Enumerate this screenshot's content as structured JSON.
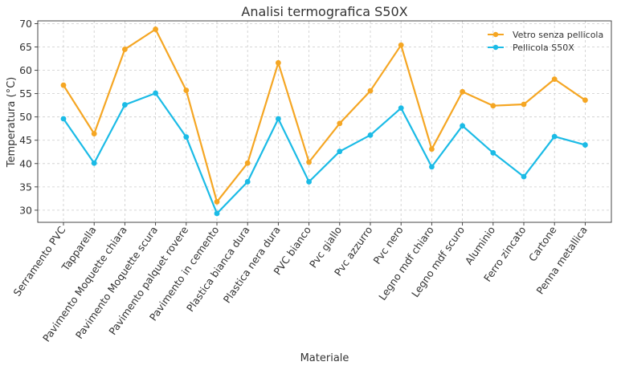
{
  "chart_data": {
    "type": "line",
    "title": "Analisi termografica S50X",
    "xlabel": "Materiale",
    "ylabel": "Temperatura (°C)",
    "ylim": [
      27.4,
      70.6
    ],
    "yticks": [
      30,
      35,
      40,
      45,
      50,
      55,
      60,
      65,
      70
    ],
    "grid": true,
    "legend_position": "top-right",
    "categories": [
      "Serramento PVC",
      "Tapparella",
      "Pavimento Moquette chiara",
      "Pavimento Moquette scura",
      "Pavimento palquet rovere",
      "Pavimento in cemento",
      "Plastica bianca dura",
      "Plastica nera dura",
      "PVC bianco",
      "Pvc giallo",
      "Pvc azzurro",
      "Pvc nero",
      "Legno mdf chiaro",
      "Legno mdf scuro",
      "Aluminio",
      "Ferro zincato",
      "Cartone",
      "Penna metallica"
    ],
    "series": [
      {
        "name": "Vetro senza pellicola",
        "color": "#f5a623",
        "values": [
          56.8,
          46.4,
          64.5,
          68.8,
          55.7,
          31.8,
          40.1,
          61.6,
          40.3,
          48.6,
          55.6,
          65.4,
          43.1,
          55.4,
          52.4,
          52.7,
          58.1,
          53.6
        ]
      },
      {
        "name": "Pellicola S50X",
        "color": "#1bbbe6",
        "values": [
          49.6,
          40.1,
          52.6,
          55.1,
          45.7,
          29.3,
          36.1,
          49.6,
          36.1,
          42.6,
          46.1,
          51.9,
          39.3,
          48.1,
          42.3,
          37.2,
          45.8,
          44.0
        ]
      }
    ]
  }
}
